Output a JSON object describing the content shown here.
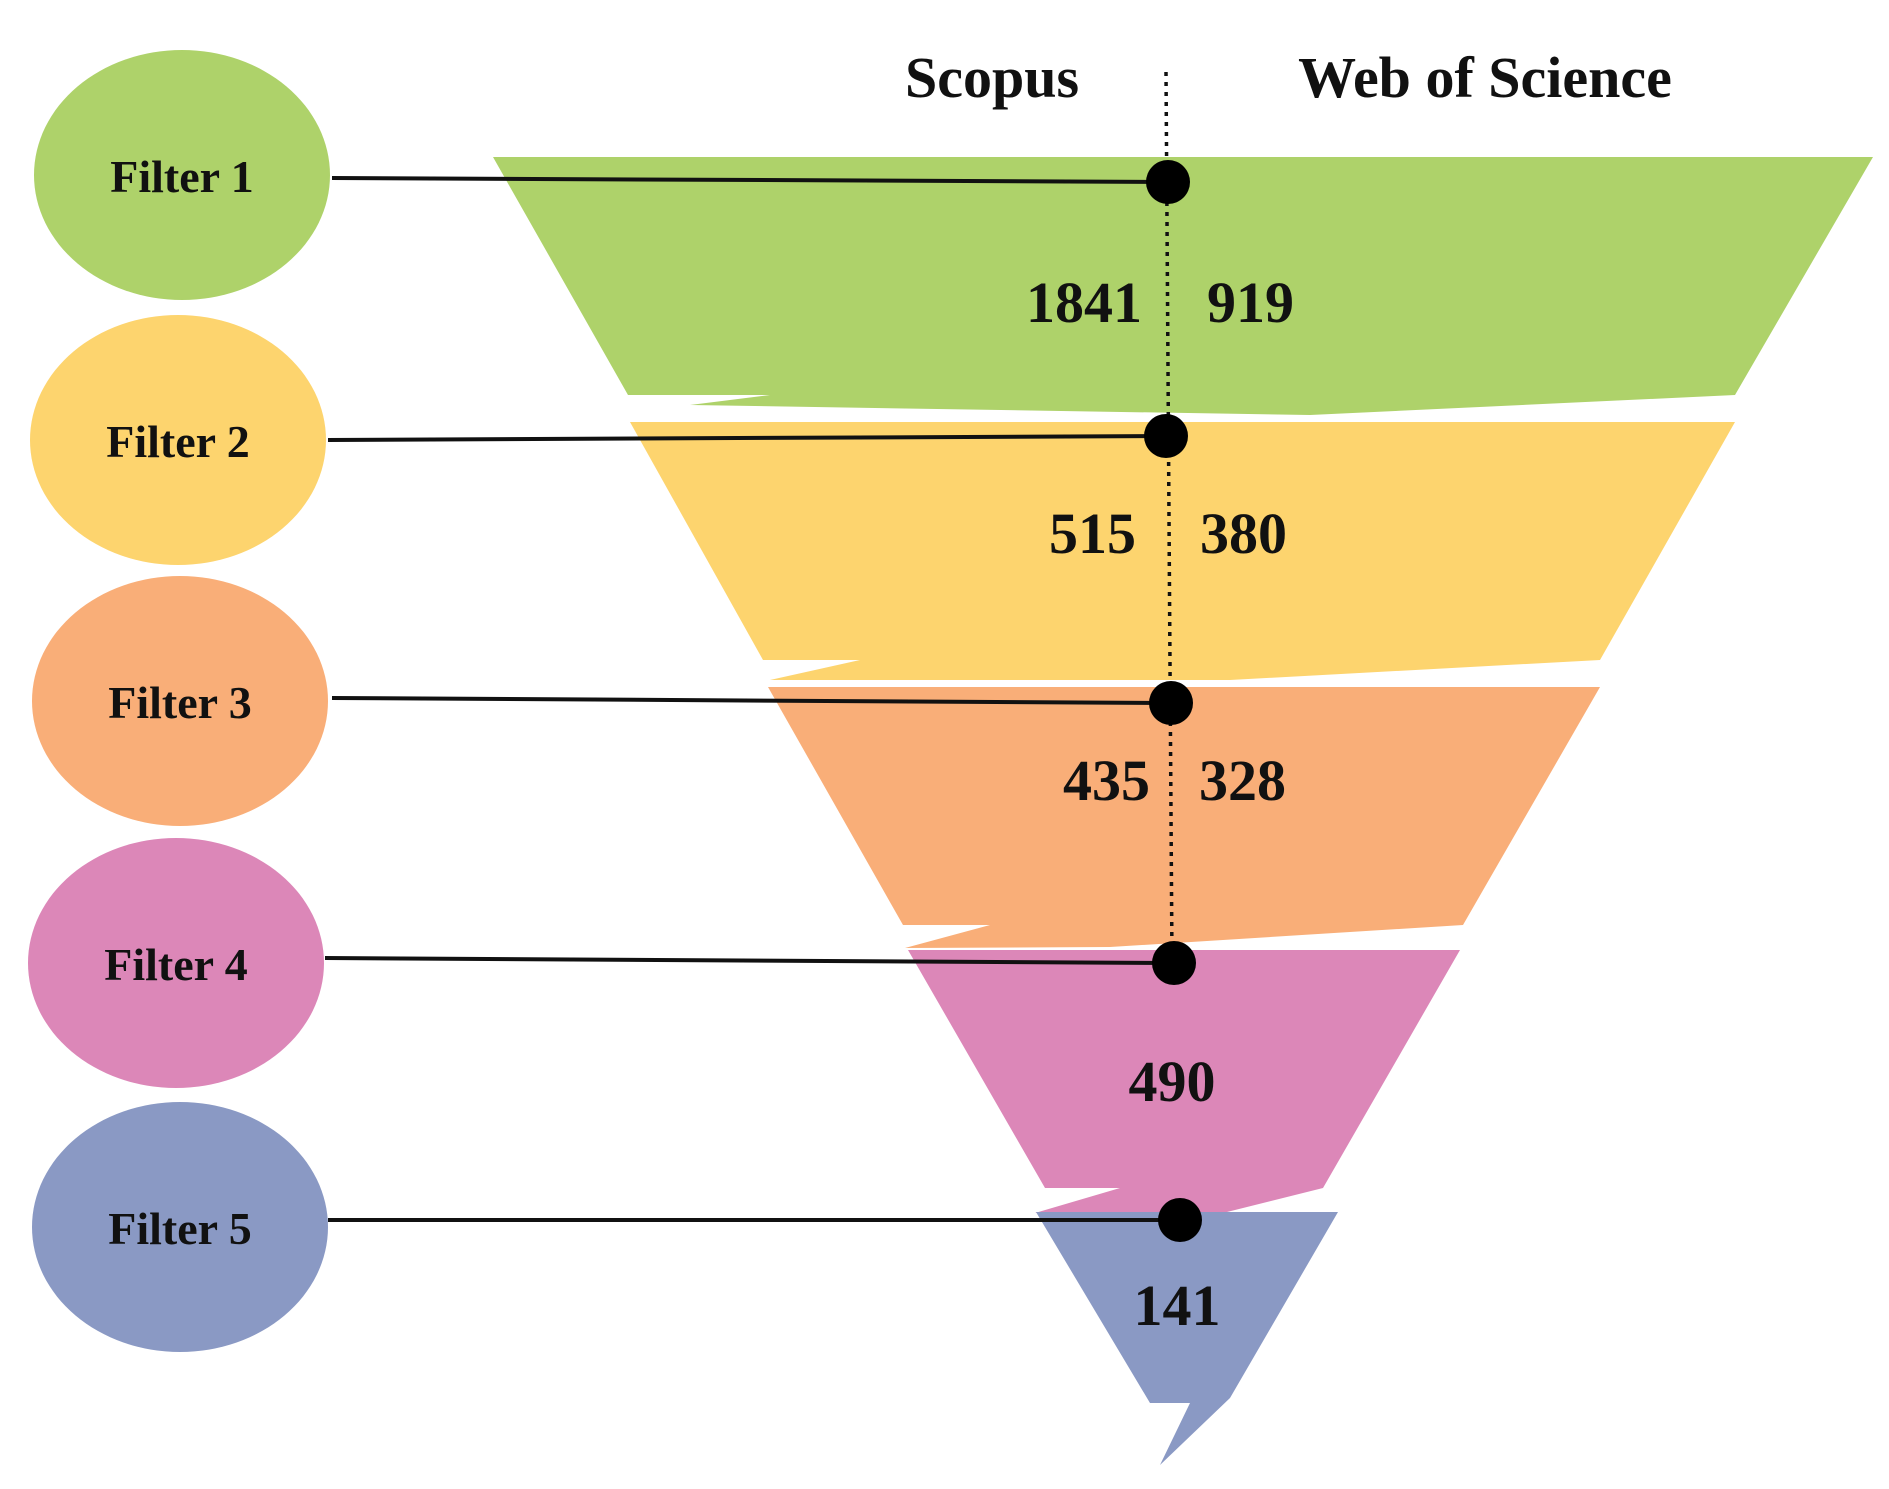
{
  "sources": {
    "left": "Scopus",
    "right": "Web of Science"
  },
  "filters": [
    {
      "label": "Filter 1",
      "color": "#aed26a",
      "scopus": "1841",
      "wos": "919",
      "combined": ""
    },
    {
      "label": "Filter 2",
      "color": "#fdd46e",
      "scopus": "515",
      "wos": "380",
      "combined": ""
    },
    {
      "label": "Filter 3",
      "color": "#f9ae78",
      "scopus": "435",
      "wos": "328",
      "combined": ""
    },
    {
      "label": "Filter 4",
      "color": "#dc87b8",
      "scopus": "",
      "wos": "",
      "combined": "490"
    },
    {
      "label": "Filter 5",
      "color": "#8a99c4",
      "scopus": "",
      "wos": "",
      "combined": "141"
    }
  ]
}
